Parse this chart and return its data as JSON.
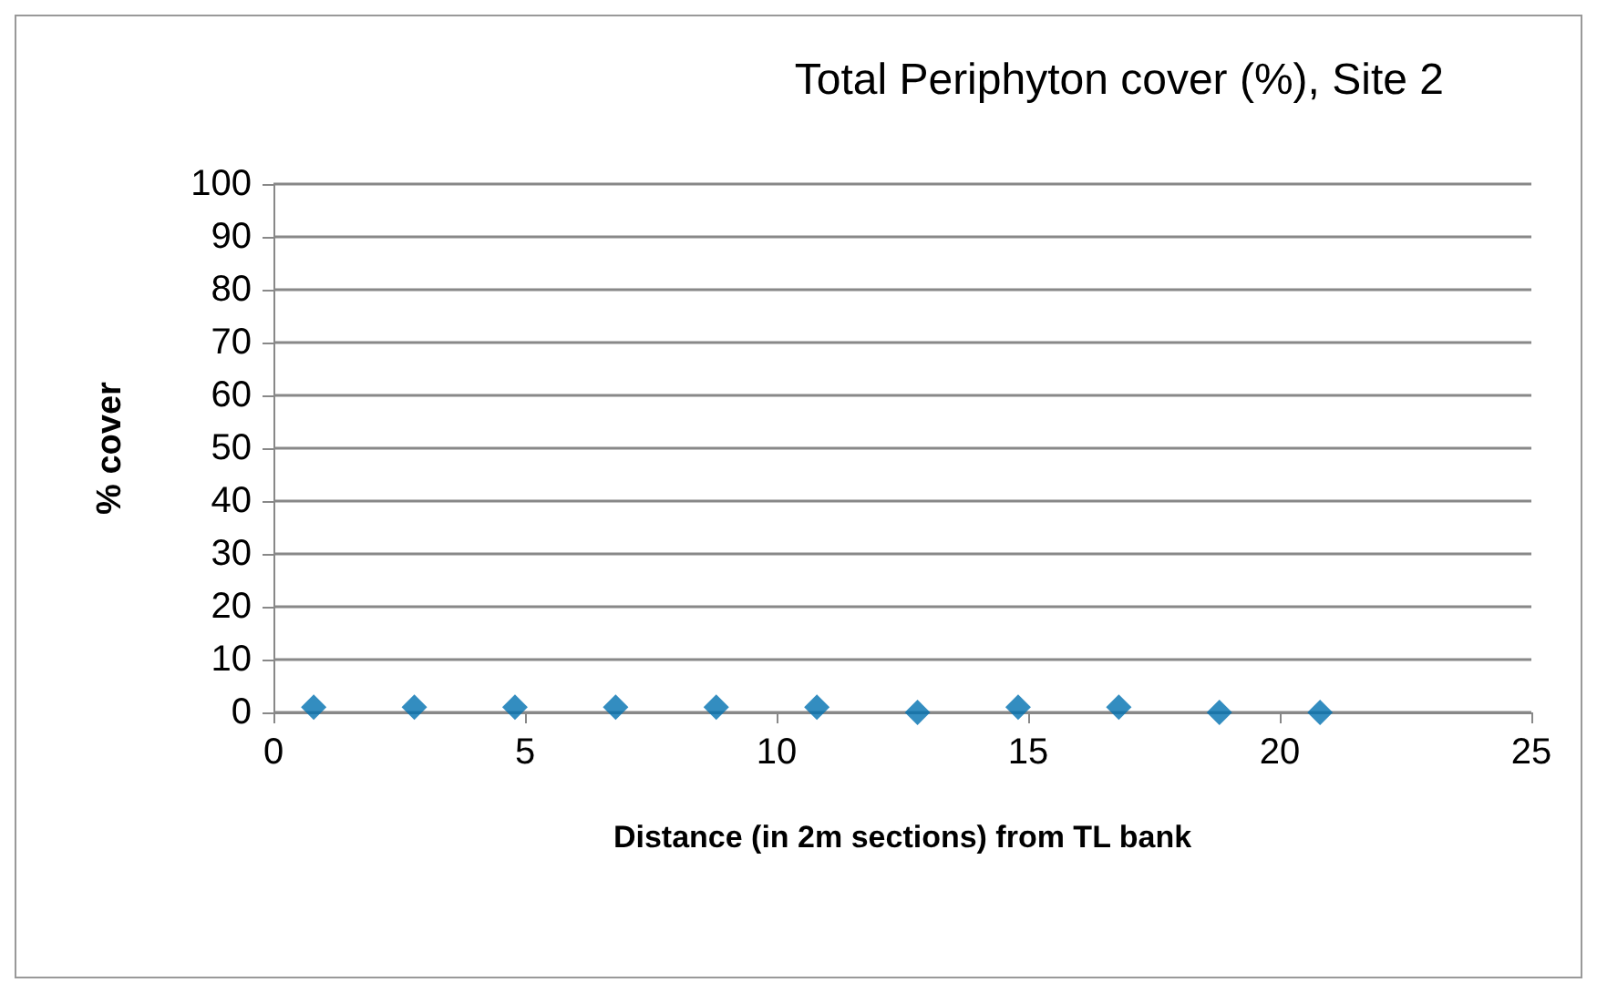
{
  "chart_data": {
    "type": "scatter",
    "title": "Total Periphyton cover (%), Site 2",
    "xlabel": "Distance (in 2m sections) from TL bank",
    "ylabel": "% cover",
    "x": [
      0.8,
      2.8,
      4.8,
      6.8,
      8.8,
      10.8,
      12.8,
      14.8,
      16.8,
      18.8,
      20.8
    ],
    "series": [
      {
        "color": "#0070b0",
        "values": [
          1,
          1,
          1,
          1,
          1,
          1,
          0,
          1,
          1,
          0,
          0
        ]
      }
    ],
    "xlim": [
      0,
      25
    ],
    "xticks": [
      0,
      5,
      10,
      15,
      20,
      25
    ],
    "ylim": [
      0,
      100
    ],
    "yticks": [
      0,
      10,
      20,
      30,
      40,
      50,
      60,
      70,
      80,
      90,
      100
    ],
    "grid": "y",
    "marker": "diamond"
  }
}
